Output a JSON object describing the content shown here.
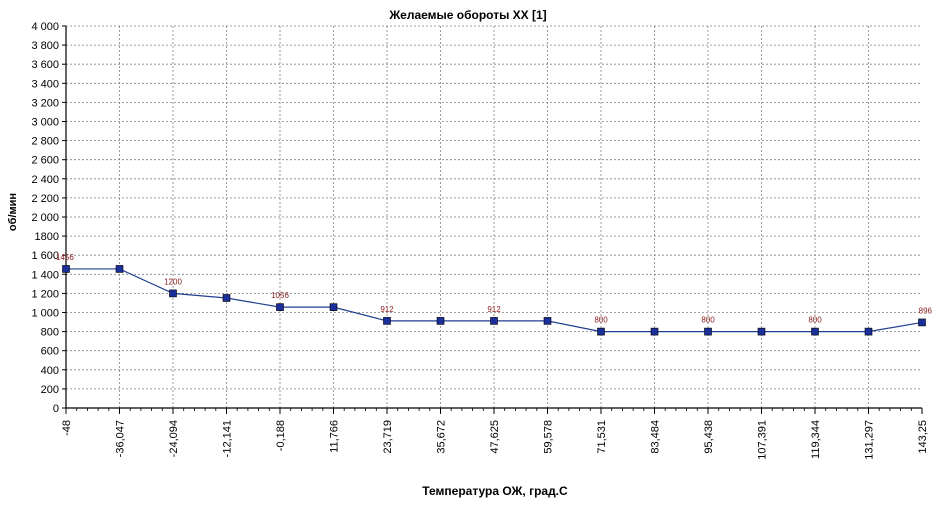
{
  "chart_data": {
    "type": "line",
    "title": "Желаемые обороты XX [1]",
    "xlabel": "Температура ОЖ, град.С",
    "ylabel": "об/мин",
    "ylim": [
      0,
      4000
    ],
    "yticks": [
      "0",
      "200",
      "400",
      "600",
      "800",
      "1 000",
      "1 200",
      "1 400",
      "1 600",
      "1800",
      "2 000",
      "2 200",
      "2 400",
      "2 600",
      "2 800",
      "3 000",
      "3 200",
      "3 400",
      "3 600",
      "3 800",
      "4 000"
    ],
    "xtick_labels": [
      "-48",
      "-36,047",
      "-24,094",
      "-12,141",
      "-0,188",
      "11,766",
      "23,719",
      "35,672",
      "47,625",
      "59,578",
      "71,531",
      "83,484",
      "95,438",
      "107,391",
      "119,344",
      "131,297",
      "143,25"
    ],
    "x": [
      -48,
      -36.047,
      -24.094,
      -12.141,
      -0.188,
      11.766,
      23.719,
      35.672,
      47.625,
      59.578,
      71.531,
      83.484,
      95.438,
      107.391,
      119.344,
      131.297,
      143.25
    ],
    "series": [
      {
        "values": [
          1456,
          1456,
          1200,
          1152,
          1056,
          1056,
          912,
          912,
          912,
          912,
          800,
          800,
          800,
          800,
          800,
          800,
          896
        ]
      }
    ],
    "data_labels": [
      "1456",
      "",
      "1200",
      "",
      "1056",
      "",
      "912",
      "",
      "912",
      "",
      "800",
      "",
      "800",
      "",
      "800",
      "",
      "896"
    ],
    "grid": true,
    "line_color": "#1f3f8f",
    "marker_color": "#1a2f9a",
    "label_color": "#8b1a1a"
  }
}
